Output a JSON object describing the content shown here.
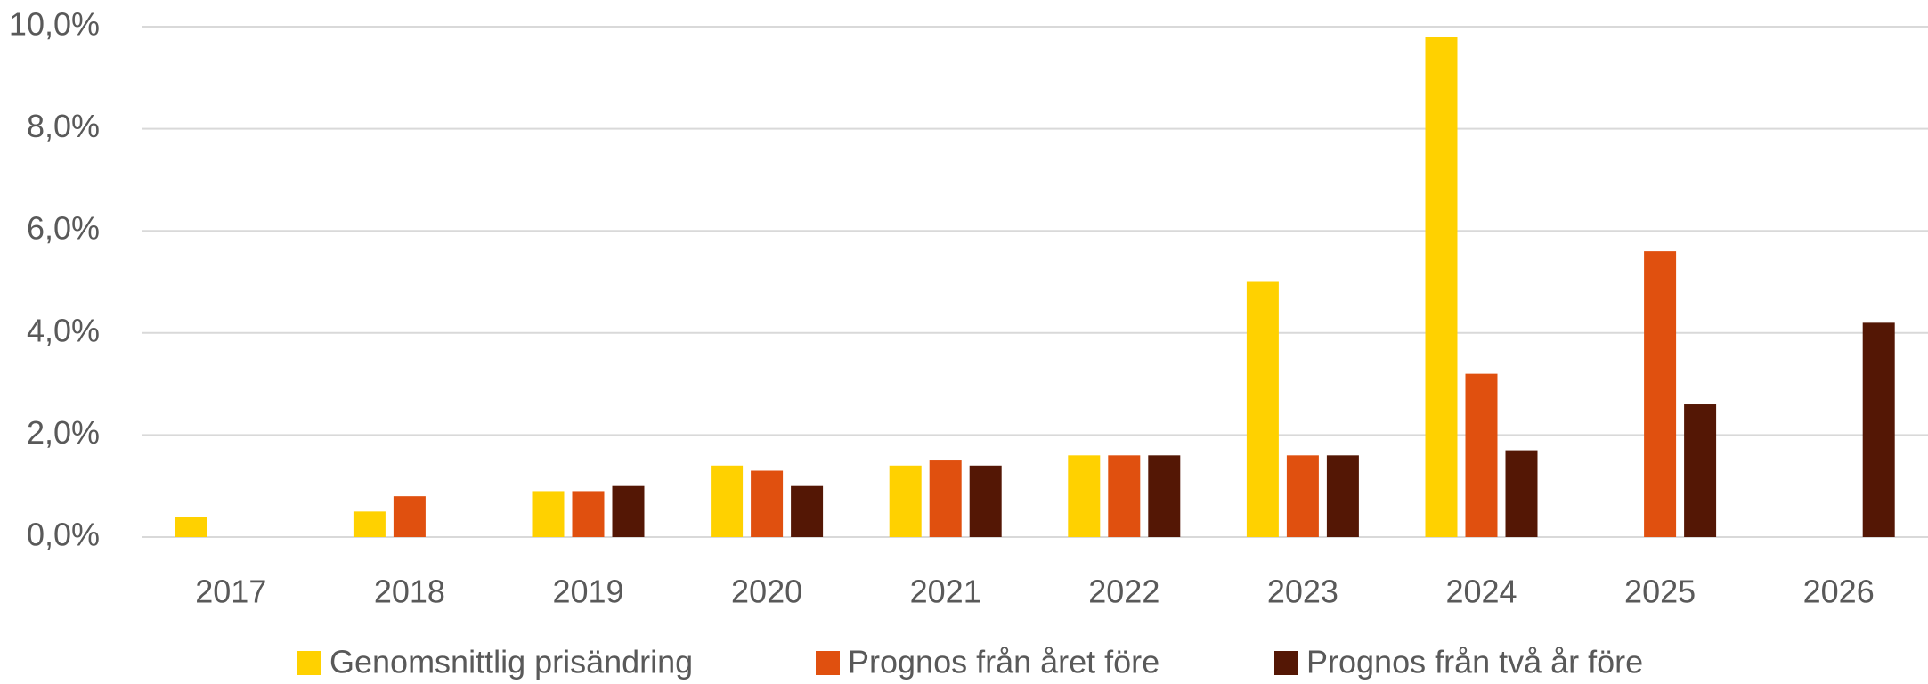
{
  "chart_data": {
    "type": "bar",
    "categories": [
      "2017",
      "2018",
      "2019",
      "2020",
      "2021",
      "2022",
      "2023",
      "2024",
      "2025",
      "2026"
    ],
    "series": [
      {
        "name": "Genomsnittlig prisändring",
        "color": "#FFD100",
        "values": [
          0.4,
          0.5,
          0.9,
          1.4,
          1.4,
          1.6,
          5.0,
          9.8,
          null,
          null
        ]
      },
      {
        "name": "Prognos från året före",
        "color": "#E0500F",
        "values": [
          null,
          0.8,
          0.9,
          1.3,
          1.5,
          1.6,
          1.6,
          3.2,
          5.6,
          null
        ]
      },
      {
        "name": "Prognos från två år före",
        "color": "#541705",
        "values": [
          null,
          null,
          1.0,
          1.0,
          1.4,
          1.6,
          1.6,
          1.7,
          2.6,
          4.2
        ]
      }
    ],
    "ylim": [
      0,
      10
    ],
    "yticks": [
      {
        "value": 0,
        "label": "0,0%"
      },
      {
        "value": 2,
        "label": "2,0%"
      },
      {
        "value": 4,
        "label": "4,0%"
      },
      {
        "value": 6,
        "label": "6,0%"
      },
      {
        "value": 8,
        "label": "8,0%"
      },
      {
        "value": 10,
        "label": "10,0%"
      }
    ],
    "grid": true
  }
}
